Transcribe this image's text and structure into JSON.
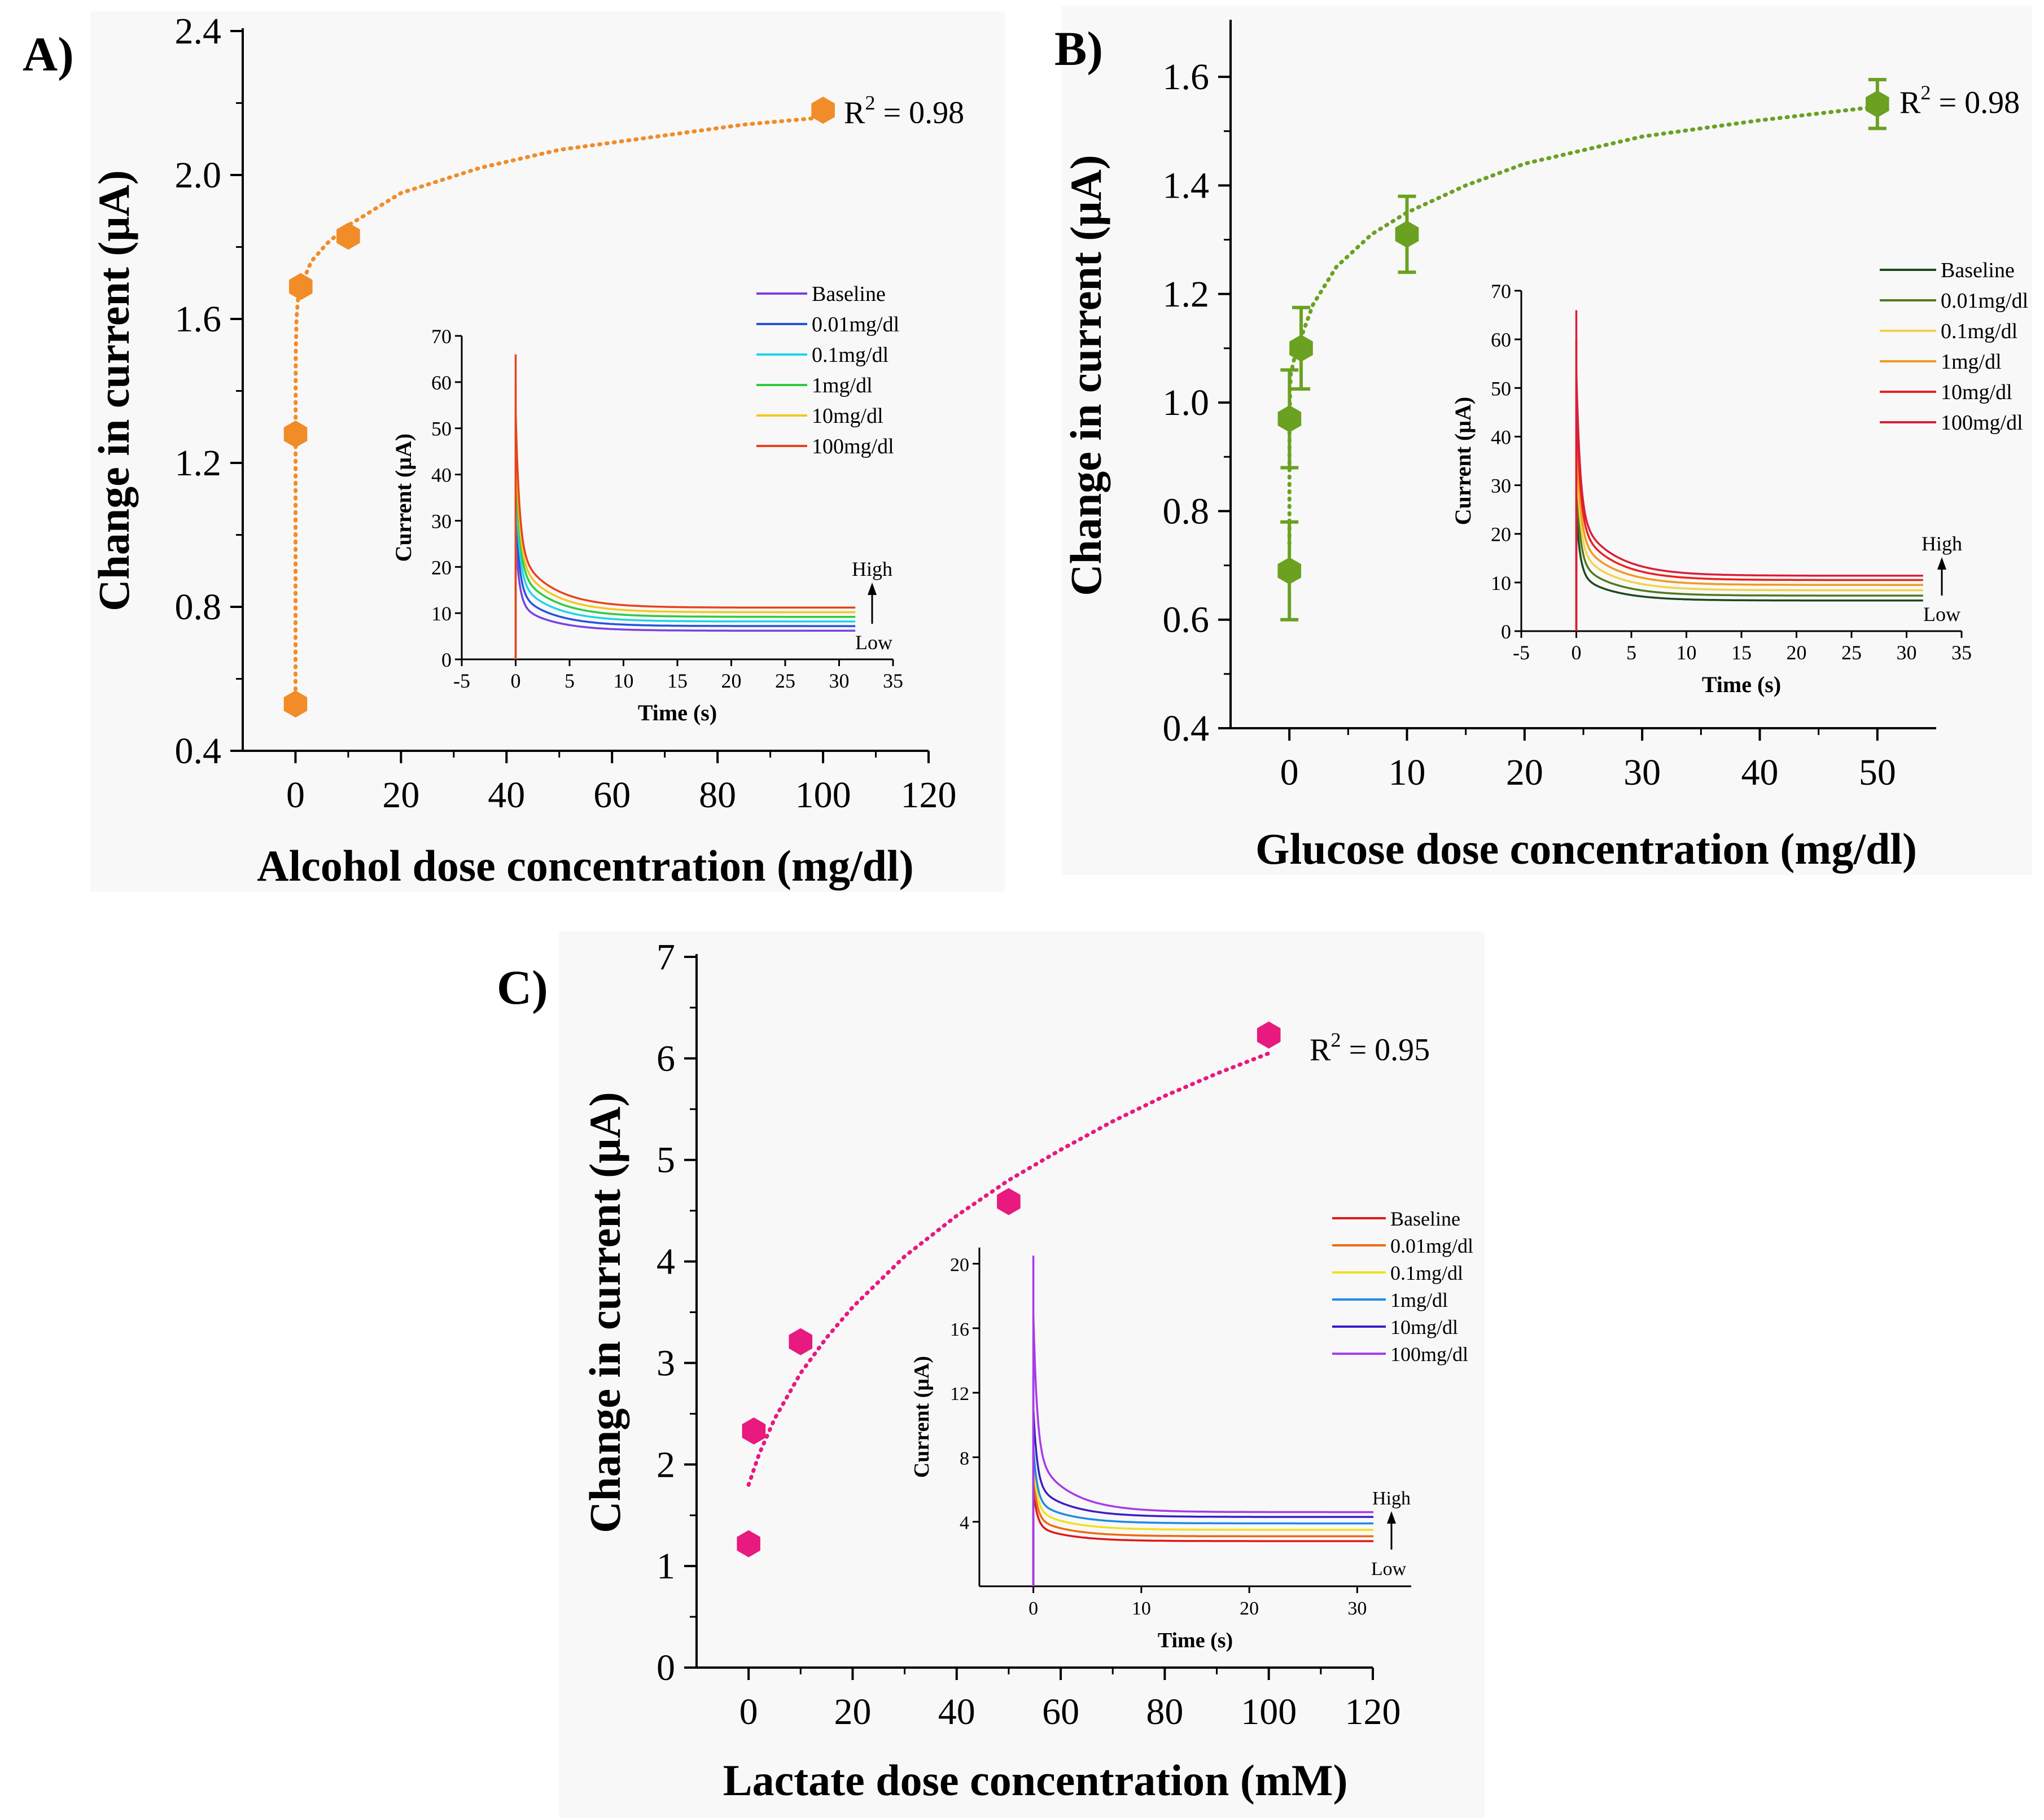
{
  "chart_data": [
    {
      "type": "scatter",
      "panel_label": "A)",
      "title": "",
      "xlabel": "Alcohol dose concentration (mg/dl)",
      "ylabel": "Change in current (μA)",
      "xlim": [
        -10,
        120
      ],
      "ylim": [
        0.4,
        2.4
      ],
      "xticks": [
        0,
        20,
        40,
        60,
        80,
        100,
        120
      ],
      "yticks": [
        0.4,
        0.8,
        1.2,
        1.6,
        2.0,
        2.4
      ],
      "ytick_labels": [
        "0.4",
        "0.8",
        "1.2",
        "1.6",
        "2.0",
        "2.4"
      ],
      "color": "#f28c28",
      "points": [
        {
          "x": 0,
          "y": 0.53
        },
        {
          "x": 0.01,
          "y": 1.28
        },
        {
          "x": 1,
          "y": 1.69
        },
        {
          "x": 10,
          "y": 1.83
        },
        {
          "x": 100,
          "y": 2.18
        }
      ],
      "fit": {
        "x": [
          0,
          0.01,
          0.05,
          0.2,
          0.5,
          1,
          3,
          6,
          10,
          20,
          35,
          50,
          70,
          85,
          100
        ],
        "y": [
          0.53,
          1.28,
          1.5,
          1.6,
          1.66,
          1.69,
          1.76,
          1.81,
          1.86,
          1.95,
          2.02,
          2.07,
          2.11,
          2.14,
          2.16
        ]
      },
      "r2_text": "R",
      "r2_sup": "2",
      "r2_value": " = 0.98",
      "inset": {
        "xlabel": "Time (s)",
        "ylabel": "Current (μA)",
        "xlim": [
          -5,
          35
        ],
        "ylim": [
          0,
          70
        ],
        "xticks": [
          -5,
          0,
          5,
          10,
          15,
          20,
          25,
          30,
          35
        ],
        "yticks": [
          0,
          10,
          20,
          30,
          40,
          50,
          60,
          70
        ],
        "high_label": "High",
        "low_label": "Low",
        "series": [
          {
            "name": "Baseline",
            "color": "#7b3fe4",
            "plateau": 6.2,
            "peak": 32
          },
          {
            "name": "0.01mg/dl",
            "color": "#2255dd",
            "plateau": 7.2,
            "peak": 40
          },
          {
            "name": "0.1mg/dl",
            "color": "#22d3e8",
            "plateau": 8.2,
            "peak": 48
          },
          {
            "name": "1mg/dl",
            "color": "#2ecc40",
            "plateau": 9.2,
            "peak": 55
          },
          {
            "name": "10mg/dl",
            "color": "#f2c81e",
            "plateau": 10.2,
            "peak": 60
          },
          {
            "name": "100mg/dl",
            "color": "#e8421e",
            "plateau": 11.2,
            "peak": 66
          }
        ]
      }
    },
    {
      "type": "scatter",
      "panel_label": "B)",
      "title": "",
      "xlabel": "Glucose dose concentration (mg/dl)",
      "ylabel": "Change in current (μA)",
      "xlim": [
        -5,
        55
      ],
      "ylim": [
        0.4,
        1.7
      ],
      "xticks": [
        0,
        10,
        20,
        30,
        40,
        50
      ],
      "yticks": [
        0.4,
        0.6,
        0.8,
        1.0,
        1.2,
        1.4,
        1.6
      ],
      "ytick_labels": [
        "0.4",
        "0.6",
        "0.8",
        "1.0",
        "1.2",
        "1.4",
        "1.6"
      ],
      "color": "#6aa121",
      "points": [
        {
          "x": 0,
          "y": 0.69,
          "err": 0.09
        },
        {
          "x": 0.01,
          "y": 0.97,
          "err": 0.09
        },
        {
          "x": 1,
          "y": 1.1,
          "err": 0.075
        },
        {
          "x": 10,
          "y": 1.31,
          "err": 0.07
        },
        {
          "x": 50,
          "y": 1.55,
          "err": 0.045
        }
      ],
      "fit": {
        "x": [
          0,
          0.01,
          0.1,
          0.5,
          1,
          2,
          4,
          7,
          10,
          15,
          20,
          30,
          40,
          50
        ],
        "y": [
          0.74,
          0.97,
          1.05,
          1.09,
          1.12,
          1.18,
          1.25,
          1.31,
          1.35,
          1.4,
          1.44,
          1.49,
          1.52,
          1.545
        ]
      },
      "r2_text": "R",
      "r2_sup": "2",
      "r2_value": " = 0.98",
      "inset": {
        "xlabel": "Time (s)",
        "ylabel": "Current (μA)",
        "xlim": [
          -5,
          35
        ],
        "ylim": [
          0,
          70
        ],
        "xticks": [
          -5,
          0,
          5,
          10,
          15,
          20,
          25,
          30,
          35
        ],
        "yticks": [
          0,
          10,
          20,
          30,
          40,
          50,
          60,
          70
        ],
        "high_label": "High",
        "low_label": "Low",
        "series": [
          {
            "name": "Baseline",
            "color": "#1b4a1e",
            "plateau": 6.3,
            "peak": 30
          },
          {
            "name": "0.01mg/dl",
            "color": "#4f7a1e",
            "plateau": 7.3,
            "peak": 38
          },
          {
            "name": "0.1mg/dl",
            "color": "#f2d24a",
            "plateau": 8.4,
            "peak": 45
          },
          {
            "name": "1mg/dl",
            "color": "#f09a1e",
            "plateau": 9.5,
            "peak": 52
          },
          {
            "name": "10mg/dl",
            "color": "#e8211e",
            "plateau": 10.5,
            "peak": 60
          },
          {
            "name": "100mg/dl",
            "color": "#d91e3a",
            "plateau": 11.4,
            "peak": 66
          }
        ]
      }
    },
    {
      "type": "scatter",
      "panel_label": "C)",
      "title": "",
      "xlabel": "Lactate dose concentration (mM)",
      "ylabel": "Change in current (μA)",
      "xlim": [
        -10,
        120
      ],
      "ylim": [
        0,
        7
      ],
      "xticks": [
        0,
        20,
        40,
        60,
        80,
        100,
        120
      ],
      "yticks": [
        0,
        1,
        2,
        3,
        4,
        5,
        6,
        7
      ],
      "ytick_labels": [
        "0",
        "1",
        "2",
        "3",
        "4",
        "5",
        "6",
        "7"
      ],
      "color": "#e8197f",
      "points": [
        {
          "x": 0,
          "y": 1.22
        },
        {
          "x": 1,
          "y": 2.33
        },
        {
          "x": 10,
          "y": 3.21
        },
        {
          "x": 50,
          "y": 4.59
        },
        {
          "x": 100,
          "y": 6.23
        }
      ],
      "fit": {
        "x": [
          0,
          2,
          5,
          10,
          15,
          20,
          30,
          40,
          50,
          60,
          70,
          80,
          90,
          100
        ],
        "y": [
          1.8,
          2.1,
          2.45,
          2.9,
          3.25,
          3.55,
          4.05,
          4.45,
          4.8,
          5.1,
          5.38,
          5.63,
          5.85,
          6.05
        ]
      },
      "r2_text": "R",
      "r2_sup": "2",
      "r2_value": " = 0.95",
      "inset": {
        "xlabel": "Time (s)",
        "ylabel": "Current (μA)",
        "xlim": [
          -5,
          35
        ],
        "ylim": [
          0,
          21
        ],
        "xticks": [
          0,
          10,
          20,
          30
        ],
        "yticks": [
          4,
          8,
          12,
          16,
          20
        ],
        "high_label": "High",
        "low_label": "Low",
        "series": [
          {
            "name": "Baseline",
            "color": "#e01818",
            "plateau": 2.8,
            "peak": 7
          },
          {
            "name": "0.01mg/dl",
            "color": "#f06a10",
            "plateau": 3.1,
            "peak": 8
          },
          {
            "name": "0.1mg/dl",
            "color": "#f2e01e",
            "plateau": 3.5,
            "peak": 9
          },
          {
            "name": "1mg/dl",
            "color": "#1e8ae8",
            "plateau": 3.9,
            "peak": 10
          },
          {
            "name": "10mg/dl",
            "color": "#3a1ec8",
            "plateau": 4.3,
            "peak": 13
          },
          {
            "name": "100mg/dl",
            "color": "#a83ae8",
            "plateau": 4.6,
            "peak": 20.5
          }
        ]
      }
    }
  ]
}
